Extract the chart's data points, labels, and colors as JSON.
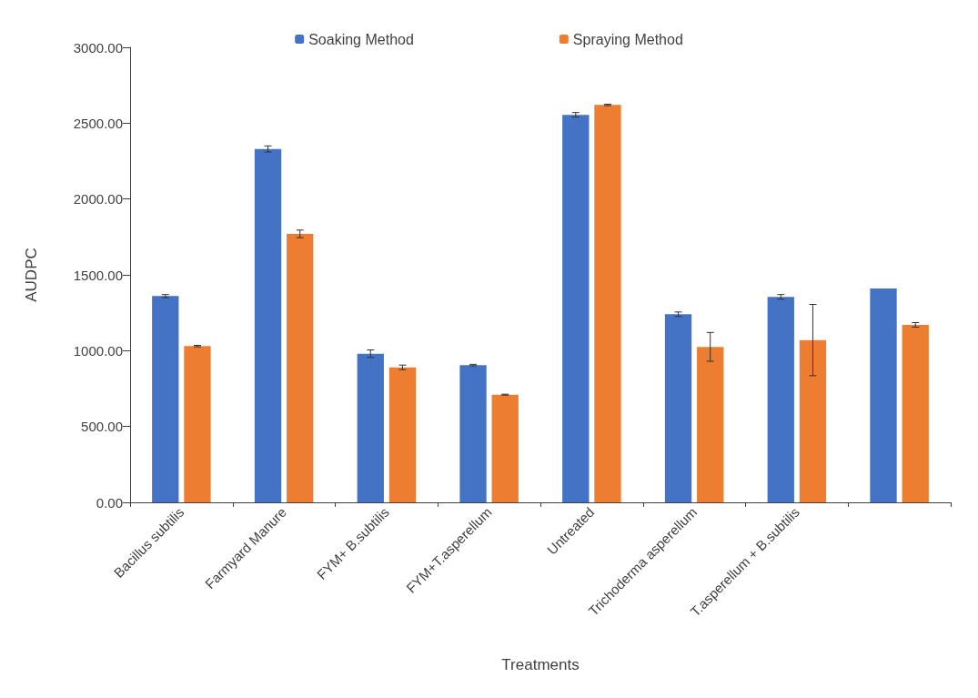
{
  "chart_data": {
    "type": "bar",
    "xlabel": "Treatments",
    "ylabel": "AUDPC",
    "categories": [
      "Bacillus subtilis",
      "Farmyard Manure",
      "FYM+ B.subtilis",
      "FYM+T.asperellum",
      "Untreated",
      "Trichoderma asperellum",
      "T.asperellum + B.subtilis",
      null
    ],
    "series": [
      {
        "name": "Soaking Method",
        "color": "#4472c4",
        "values": [
          1360,
          2330,
          980,
          905,
          2555,
          1240,
          1355,
          1410
        ],
        "errors": [
          10,
          20,
          25,
          5,
          15,
          15,
          15,
          null
        ]
      },
      {
        "name": "Spraying Method",
        "color": "#ed7d31",
        "values": [
          1030,
          1770,
          890,
          710,
          2620,
          1025,
          1070,
          1170
        ],
        "errors": [
          5,
          25,
          15,
          3,
          5,
          95,
          235,
          15
        ]
      }
    ],
    "ylim": [
      0,
      3000
    ],
    "yticks": [
      {
        "value": 0,
        "label": "0.00"
      },
      {
        "value": 500,
        "label": "500.00"
      },
      {
        "value": 1000,
        "label": "1000.00"
      },
      {
        "value": 1500,
        "label": "1500.00"
      },
      {
        "value": 2000,
        "label": "2000.00"
      },
      {
        "value": 2500,
        "label": "2500.00"
      },
      {
        "value": 3000,
        "label": "3000.00"
      }
    ],
    "grid": false,
    "legend": "top"
  }
}
